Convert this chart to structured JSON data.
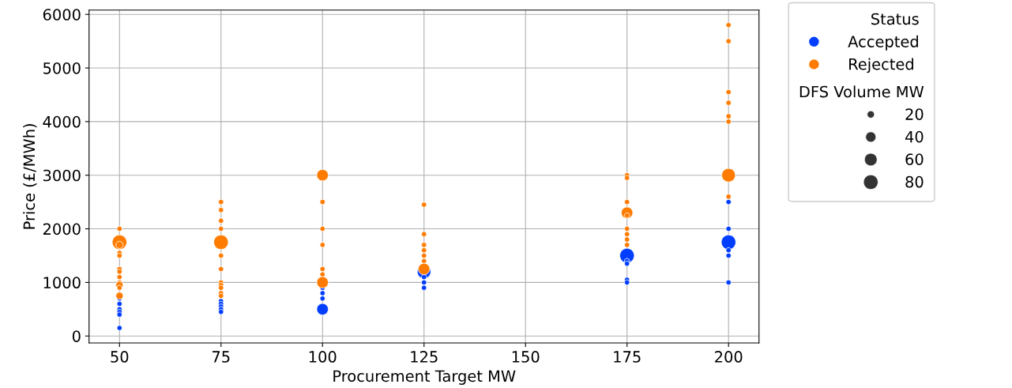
{
  "chart_data": {
    "type": "bubble",
    "xlabel": "Procurement Target MW",
    "ylabel": "Price (£/MWh)",
    "legend_title": [
      "Status",
      "DFS Volume MW"
    ],
    "series": [
      {
        "name": "Accepted",
        "color": "#023eff",
        "x": [
          50,
          50,
          50,
          50,
          50,
          50,
          75,
          75,
          75,
          75,
          75,
          100,
          100,
          100,
          100,
          125,
          125,
          125,
          125,
          175,
          175,
          175,
          175,
          175,
          175,
          200,
          200,
          200,
          200,
          200,
          200
        ],
        "values": [
          700,
          600,
          500,
          450,
          400,
          150,
          650,
          600,
          550,
          500,
          450,
          900,
          800,
          700,
          500,
          1200,
          1100,
          1000,
          900,
          1600,
          1500,
          1400,
          1350,
          1050,
          1000,
          2500,
          2000,
          1750,
          1600,
          1500,
          1000
        ],
        "sizes": [
          10,
          10,
          10,
          10,
          10,
          10,
          10,
          10,
          10,
          10,
          10,
          10,
          10,
          10,
          50,
          70,
          10,
          10,
          10,
          10,
          80,
          10,
          10,
          10,
          10,
          10,
          10,
          80,
          10,
          10,
          10
        ]
      },
      {
        "name": "Rejected",
        "color": "#ff7c00",
        "x": [
          50,
          50,
          50,
          50,
          50,
          50,
          50,
          50,
          50,
          50,
          50,
          50,
          75,
          75,
          75,
          75,
          75,
          75,
          75,
          75,
          75,
          75,
          75,
          75,
          100,
          100,
          100,
          100,
          100,
          100,
          100,
          125,
          125,
          125,
          125,
          125,
          125,
          125,
          175,
          175,
          175,
          175,
          175,
          175,
          175,
          175,
          175,
          200,
          200,
          200,
          200,
          200,
          200,
          200,
          200
        ],
        "values": [
          2000,
          1750,
          1700,
          1550,
          1500,
          1250,
          1200,
          1100,
          1000,
          950,
          900,
          750,
          2500,
          2350,
          2150,
          2000,
          1750,
          1500,
          1250,
          1000,
          950,
          900,
          800,
          750,
          3000,
          2500,
          2000,
          1700,
          1250,
          1150,
          1000,
          2450,
          1900,
          1700,
          1600,
          1500,
          1400,
          1250,
          3000,
          2950,
          2500,
          2300,
          2250,
          2000,
          1900,
          1800,
          1700,
          5800,
          5500,
          4550,
          4350,
          4100,
          4000,
          3000,
          2600
        ],
        "sizes": [
          10,
          80,
          20,
          10,
          10,
          10,
          10,
          10,
          10,
          20,
          10,
          20,
          10,
          10,
          10,
          10,
          80,
          10,
          10,
          10,
          10,
          10,
          10,
          10,
          50,
          10,
          10,
          10,
          10,
          10,
          50,
          10,
          10,
          10,
          10,
          10,
          10,
          50,
          10,
          10,
          10,
          50,
          10,
          10,
          10,
          10,
          10,
          10,
          10,
          10,
          10,
          10,
          10,
          70,
          10
        ]
      }
    ],
    "size_legend": [
      20,
      40,
      60,
      80
    ],
    "xlim": [
      42.5,
      207.5
    ],
    "xticks": [
      50,
      75,
      100,
      125,
      150,
      175,
      200
    ],
    "ylim": [
      -130,
      6080
    ],
    "yticks": [
      0,
      1000,
      2000,
      3000,
      4000,
      5000,
      6000
    ],
    "grid": true,
    "legend": "top right",
    "marker": "circle"
  }
}
